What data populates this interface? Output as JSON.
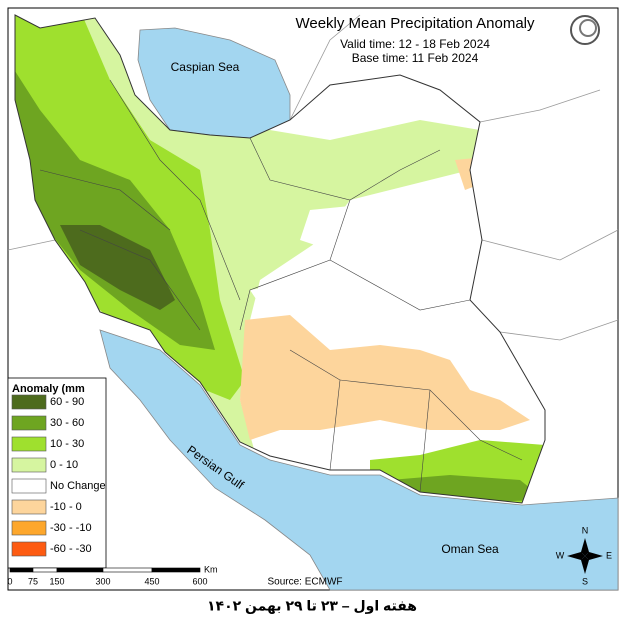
{
  "header": {
    "title": "Weekly Mean Precipitation Anomaly",
    "valid_time": "Valid time:  12 - 18 Feb 2024",
    "base_time": "Base time: 11 Feb 2024"
  },
  "legend": {
    "title": "Anomaly (mm",
    "items": [
      {
        "label": "60 - 90",
        "color": "#4d6b1d"
      },
      {
        "label": "30 - 60",
        "color": "#6ea521"
      },
      {
        "label": "10 - 30",
        "color": "#9fe02e"
      },
      {
        "label": "0 - 10",
        "color": "#d6f5a0"
      },
      {
        "label": "No Change",
        "color": "#ffffff"
      },
      {
        "label": "-10 - 0",
        "color": "#fdd59c"
      },
      {
        "label": "-30 - -10",
        "color": "#fda72c"
      },
      {
        "label": "-60 - -30",
        "color": "#fd5b12"
      }
    ]
  },
  "labels": {
    "caspian": "Caspian Sea",
    "gulf": "Persian Gulf",
    "oman": "Oman Sea"
  },
  "scale_bar": {
    "ticks": [
      "0",
      "75",
      "150",
      "300",
      "450",
      "600"
    ],
    "unit": "Km"
  },
  "compass": {
    "n": "N",
    "e": "E",
    "s": "S",
    "w": "W"
  },
  "source": "Source: ECMWF",
  "footer": "هفته اول – ۲۳ تا ۲۹ بهمن ۱۴۰۲"
}
